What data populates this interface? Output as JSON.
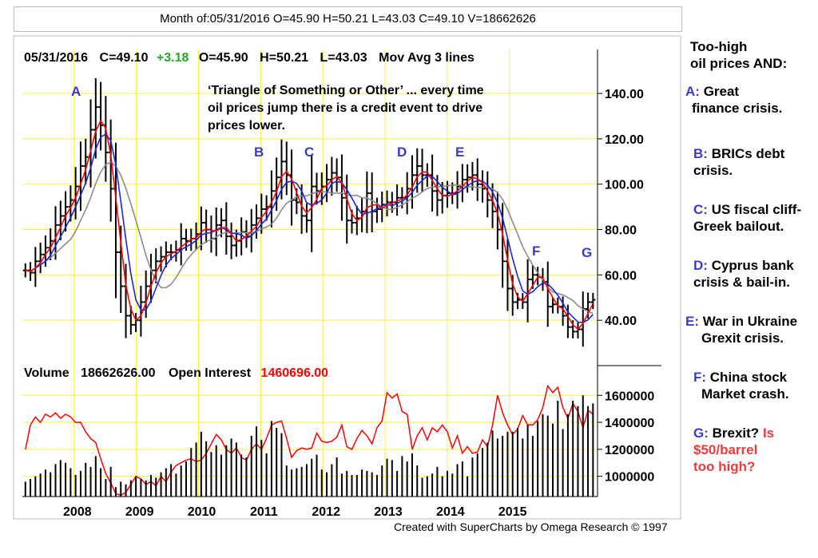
{
  "top_bar_text": "Month of:05/31/2016 O=45.90 H=50.21 L=43.03 C=49.10 V=18662626",
  "colors": {
    "grid": "#f5f13a",
    "price_bars": "#000000",
    "ma_short": "#ff0000",
    "ma_mid": "#1d23e6",
    "ma_long": "#8c8c8c",
    "open_interest": "#ff0000",
    "volume": "#000000",
    "change_positive": "#22aa22",
    "annotation_letters": "#3a3ad0",
    "sidebar_red": "#ef3b3b"
  },
  "header": {
    "date": "05/31/2016",
    "close": "C=49.10",
    "change": "+3.18",
    "open": "O=45.90",
    "high": "H=50.21",
    "low": "L=43.03",
    "mov_avg": "Mov Avg 3 lines"
  },
  "annotation_text": [
    "‘Triangle of Something or Other’ ... every time",
    "oil prices jump there is a credit event to drive",
    "prices lower."
  ],
  "volume_header": {
    "label": "Volume",
    "volume_value": "18662626.00",
    "oi_label": "Open Interest",
    "oi_value": "1460696.00"
  },
  "sidebar": {
    "title_line1": "Too-high",
    "title_line2": "oil prices AND:",
    "items": [
      {
        "letter": "A:",
        "line1": "Great",
        "line2": "finance crisis."
      },
      {
        "letter": "B:",
        "line1": "BRICs debt",
        "line2": "crisis."
      },
      {
        "letter": "C:",
        "line1": "US fiscal cliff-",
        "line2": "Greek bailout."
      },
      {
        "letter": "D:",
        "line1": "Cyprus bank",
        "line2": "crisis & bail-in."
      },
      {
        "letter": "E:",
        "line1": "War in Ukraine",
        "line2": "Grexit crisis."
      },
      {
        "letter": "F:",
        "line1": "China stock",
        "line2": "Market crash."
      }
    ],
    "last_item": {
      "letter": "G:",
      "line1_black": "Brexit?",
      "line1_red": "Is",
      "line2": "$50/barrel",
      "line3": "too high?"
    }
  },
  "footer": "Created with SuperCharts by Omega Research © 1997",
  "chart_data": {
    "type": "bar",
    "price_panel": {
      "y_ticks": [
        "140.00",
        "120.00",
        "100.00",
        "80.00",
        "60.00",
        "40.00"
      ],
      "ylim": [
        20,
        152
      ],
      "x_tick_labels": [
        "2008",
        "2009",
        "2010",
        "2011",
        "2012",
        "2013",
        "2014",
        "2015"
      ],
      "x_range_months": [
        2007.167,
        2016.417
      ],
      "monthly_close": [
        62,
        61,
        66,
        69,
        72,
        75,
        82,
        86,
        90,
        93,
        99,
        108,
        112,
        124,
        134,
        126,
        114,
        98,
        70,
        55,
        42,
        38,
        40,
        48,
        55,
        62,
        66,
        68,
        70,
        70,
        71,
        76,
        75,
        76,
        78,
        83,
        80,
        76,
        82,
        84,
        77,
        73,
        75,
        79,
        77,
        82,
        85,
        89,
        90,
        97,
        103,
        110,
        104,
        93,
        92,
        86,
        84,
        99,
        97,
        99,
        102,
        105,
        103,
        94,
        84,
        83,
        85,
        88,
        96,
        88,
        89,
        91,
        92,
        92,
        94,
        94,
        98,
        104,
        108,
        104,
        104,
        97,
        93,
        95,
        96,
        96,
        99,
        102,
        103,
        104,
        100,
        98,
        93,
        88,
        80,
        66,
        54,
        48,
        49,
        48,
        58,
        60,
        59,
        57,
        46,
        47,
        46,
        42,
        37,
        35,
        36,
        45,
        48,
        49
      ],
      "annotations": [
        "A",
        "B",
        "C",
        "D",
        "E",
        "F",
        "G"
      ],
      "moving_averages": [
        "short (red)",
        "medium (blue)",
        "long (gray)"
      ]
    },
    "volume_panel": {
      "y_ticks": [
        "1600000",
        "1400000",
        "1200000",
        "1000000"
      ],
      "ylim": [
        850000,
        1720000
      ],
      "open_interest": [
        1200000,
        1380000,
        1440000,
        1400000,
        1460000,
        1440000,
        1470000,
        1430000,
        1460000,
        1440000,
        1400000,
        1400000,
        1330000,
        1280000,
        1250000,
        1130000,
        1020000,
        950000,
        870000,
        860000,
        880000,
        940000,
        1000000,
        980000,
        940000,
        960000,
        930000,
        1000000,
        960000,
        1030000,
        1080000,
        1100000,
        1120000,
        1130000,
        1110000,
        1120000,
        1170000,
        1240000,
        1310000,
        1270000,
        1200000,
        1170000,
        1210000,
        1140000,
        1120000,
        1200000,
        1240000,
        1200000,
        1280000,
        1380000,
        1400000,
        1410000,
        1280000,
        1140000,
        1190000,
        1210000,
        1200000,
        1210000,
        1320000,
        1260000,
        1250000,
        1260000,
        1290000,
        1380000,
        1220000,
        1200000,
        1280000,
        1340000,
        1300000,
        1240000,
        1360000,
        1410000,
        1620000,
        1580000,
        1610000,
        1480000,
        1460000,
        1200000,
        1300000,
        1360000,
        1270000,
        1360000,
        1330000,
        1380000,
        1330000,
        1210000,
        1300000,
        1170000,
        1220000,
        1170000,
        1180000,
        1270000,
        1220000,
        1380000,
        1600000,
        1470000,
        1380000,
        1310000,
        1350000,
        1450000,
        1380000,
        1380000,
        1420000,
        1510000,
        1670000,
        1620000,
        1660000,
        1510000,
        1430000,
        1540000,
        1480000,
        1360000,
        1490000,
        1460000
      ],
      "volume": [
        960000,
        980000,
        1000000,
        1020000,
        1050000,
        1030000,
        1090000,
        1120000,
        1100000,
        1060000,
        1010000,
        1040000,
        1100000,
        1070000,
        1150000,
        1060000,
        980000,
        1070000,
        920000,
        960000,
        940000,
        970000,
        1000000,
        980000,
        970000,
        1010000,
        990000,
        1030000,
        1060000,
        1090000,
        1020000,
        1080000,
        1110000,
        1210000,
        1250000,
        1330000,
        1260000,
        1180000,
        1230000,
        1160000,
        1230000,
        1280000,
        1250000,
        1160000,
        1140000,
        1300000,
        1370000,
        1270000,
        1170000,
        1410000,
        1360000,
        1320000,
        1080000,
        1050000,
        1060000,
        1070000,
        1090000,
        1130000,
        1160000,
        1050000,
        1030000,
        1090000,
        1140000,
        1020000,
        1040000,
        1010000,
        1010000,
        1050000,
        1040000,
        1030000,
        1010000,
        1080000,
        1130000,
        1120000,
        1040000,
        1150000,
        1110000,
        1170000,
        1080000,
        990000,
        1000000,
        1020000,
        1070000,
        1000000,
        1040000,
        1020000,
        1090000,
        1110000,
        1000000,
        1140000,
        1170000,
        1210000,
        1250000,
        1340000,
        1280000,
        1300000,
        1330000,
        1330000,
        1360000,
        1280000,
        1380000,
        1300000,
        1410000,
        1460000,
        1450000,
        1390000,
        1560000,
        1350000,
        1460000,
        1560000,
        1520000,
        1600000,
        1520000,
        1540000
      ]
    }
  }
}
